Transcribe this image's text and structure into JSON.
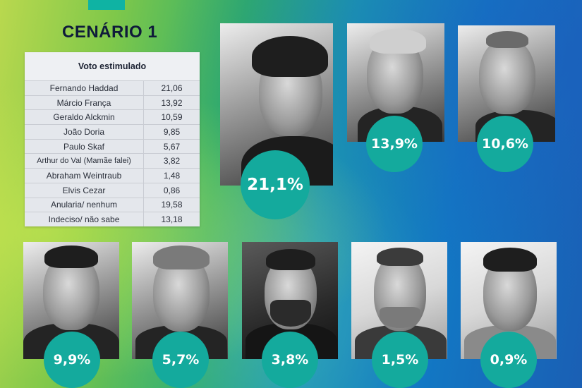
{
  "scenario_title": "CENÁRIO 1",
  "table": {
    "header": "Voto estimulado",
    "rows": [
      {
        "name": "Fernando Haddad",
        "value": "21,06"
      },
      {
        "name": "Márcio França",
        "value": "13,92"
      },
      {
        "name": "Geraldo Alckmin",
        "value": "10,59"
      },
      {
        "name": "João Doria",
        "value": "9,85"
      },
      {
        "name": "Paulo Skaf",
        "value": "5,67"
      },
      {
        "name": "Arthur do Val (Mamãe falei)",
        "value": "3,82"
      },
      {
        "name": "Abraham Weintraub",
        "value": "1,48"
      },
      {
        "name": "Elvis Cezar",
        "value": "0,86"
      },
      {
        "name": "Anularia/ nenhum",
        "value": "19,58"
      },
      {
        "name": "Indeciso/ não sabe",
        "value": "13,18"
      }
    ]
  },
  "candidates": [
    {
      "percent": "21,1%"
    },
    {
      "percent": "13,9%"
    },
    {
      "percent": "10,6%"
    },
    {
      "percent": "9,9%"
    },
    {
      "percent": "5,7%"
    },
    {
      "percent": "3,8%"
    },
    {
      "percent": "1,5%"
    },
    {
      "percent": "0,9%"
    }
  ],
  "colors": {
    "badge": "#14aa9d",
    "title": "#0f1b3a",
    "accent_tab": "#0fb3a3"
  }
}
